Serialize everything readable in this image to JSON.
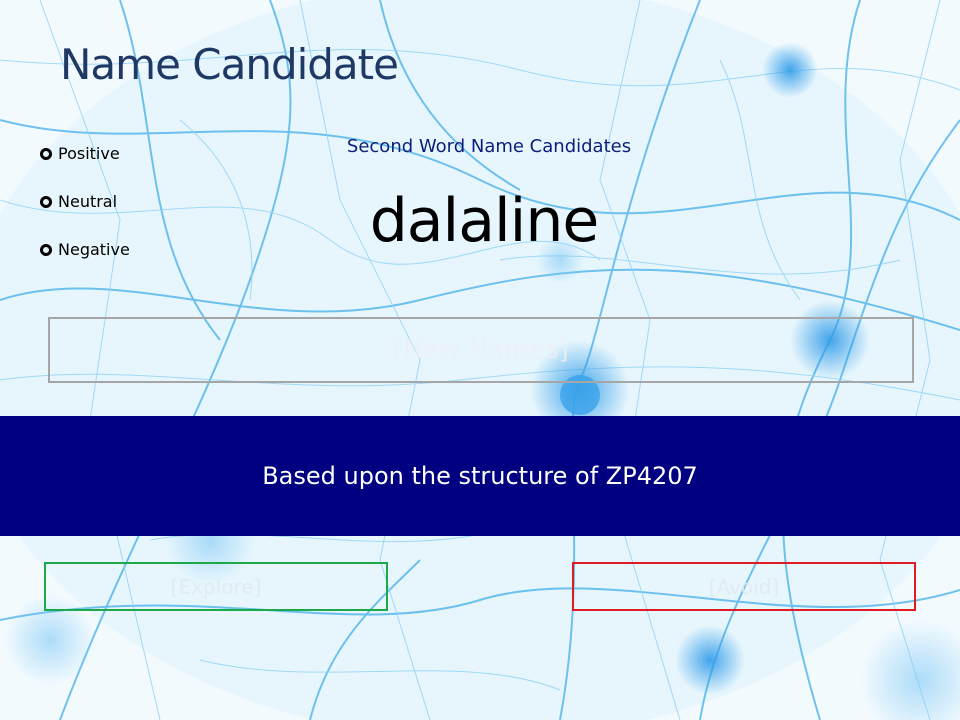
{
  "slide": {
    "title": "Name Candidate",
    "sentiment_options": [
      "Positive",
      "Neutral",
      "Negative"
    ],
    "subtitle": "Second Word Name Candidates",
    "candidate": "dalaline",
    "new_names_label": "[New Names]",
    "banner_text": "Based upon the structure of ZP4207",
    "explore_label": "[Explore]",
    "avoid_label": "[Avoid]"
  },
  "colors": {
    "title": "#1f3864",
    "subtitle": "#0b1f7a",
    "banner": "#000080",
    "explore_border": "#1fa84a",
    "avoid_border": "#e01b24",
    "new_names_border": "#a6a6a6"
  },
  "background": "neural-network-image"
}
